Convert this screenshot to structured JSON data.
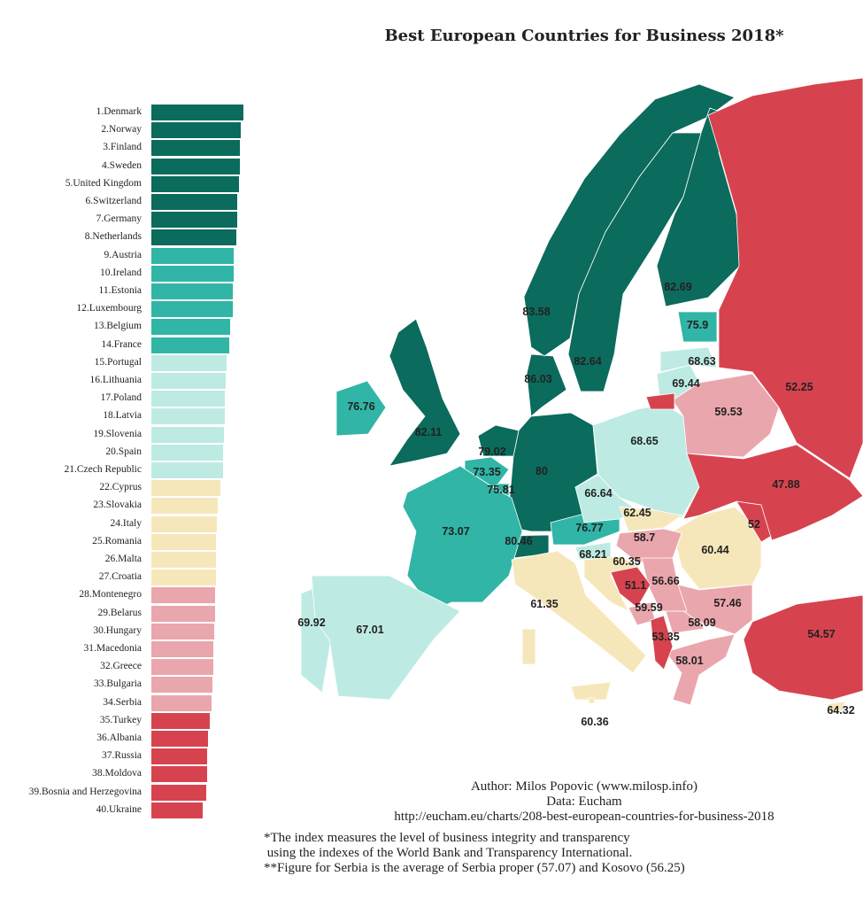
{
  "chart_data": [
    {
      "type": "bar",
      "orientation": "horizontal",
      "title": "Best European Countries for Business 2018*",
      "xlim": [
        0,
        86.03
      ],
      "categories": [
        "1.Denmark",
        "2.Norway",
        "3.Finland",
        "4.Sweden",
        "5.United Kingdom",
        "6.Switzerland",
        "7.Germany",
        "8.Netherlands",
        "9.Austria",
        "10.Ireland",
        "11.Estonia",
        "12.Luxembourg",
        "13.Belgium",
        "14.France",
        "15.Portugal",
        "16.Lithuania",
        "17.Poland",
        "18.Latvia",
        "19.Slovenia",
        "20.Spain",
        "21.Czech Republic",
        "22.Cyprus",
        "23.Slovakia",
        "24.Italy",
        "25.Romania",
        "26.Malta",
        "27.Croatia",
        "28.Montenegro",
        "29.Belarus",
        "30.Hungary",
        "31.Macedonia",
        "32.Greece",
        "33.Bulgaria",
        "34.Serbia",
        "35.Turkey",
        "36.Albania",
        "37.Russia",
        "38.Moldova",
        "39.Bosnia and Herzegovina",
        "40.Ukraine"
      ],
      "values": [
        86.03,
        83.58,
        82.69,
        82.64,
        82.11,
        80.46,
        80,
        79.02,
        76.77,
        76.76,
        75.9,
        75.81,
        73.35,
        73.07,
        69.92,
        69.44,
        68.65,
        68.63,
        68.21,
        67.01,
        66.64,
        64.32,
        62.45,
        61.35,
        60.44,
        60.36,
        60.35,
        59.59,
        59.53,
        58.7,
        58.09,
        58.01,
        57.46,
        56.66,
        54.57,
        53.35,
        52.25,
        52,
        51.1,
        47.88
      ],
      "color_classes": [
        {
          "color": "#0b6b5c",
          "ranks": [
            1,
            8
          ]
        },
        {
          "color": "#30b5a6",
          "ranks": [
            9,
            14
          ]
        },
        {
          "color": "#bdebe3",
          "ranks": [
            15,
            21
          ]
        },
        {
          "color": "#f6e7bb",
          "ranks": [
            22,
            27
          ]
        },
        {
          "color": "#eaa6ad",
          "ranks": [
            28,
            34
          ]
        },
        {
          "color": "#d6434f",
          "ranks": [
            35,
            40
          ]
        }
      ]
    },
    {
      "type": "choropleth",
      "regions": [
        {
          "country": "Denmark",
          "value": "86.03"
        },
        {
          "country": "Norway",
          "value": "83.58"
        },
        {
          "country": "Finland",
          "value": "82.69"
        },
        {
          "country": "Sweden",
          "value": "82.64"
        },
        {
          "country": "United Kingdom",
          "value": "82.11"
        },
        {
          "country": "Switzerland",
          "value": "80.46"
        },
        {
          "country": "Germany",
          "value": "80"
        },
        {
          "country": "Netherlands",
          "value": "79.02"
        },
        {
          "country": "Austria",
          "value": "76.77"
        },
        {
          "country": "Ireland",
          "value": "76.76"
        },
        {
          "country": "Estonia",
          "value": "75.9"
        },
        {
          "country": "Luxembourg",
          "value": "75.81"
        },
        {
          "country": "Belgium",
          "value": "73.35"
        },
        {
          "country": "France",
          "value": "73.07"
        },
        {
          "country": "Portugal",
          "value": "69.92"
        },
        {
          "country": "Lithuania",
          "value": "69.44"
        },
        {
          "country": "Poland",
          "value": "68.65"
        },
        {
          "country": "Latvia",
          "value": "68.63"
        },
        {
          "country": "Slovenia",
          "value": "68.21"
        },
        {
          "country": "Spain",
          "value": "67.01"
        },
        {
          "country": "Czech Republic",
          "value": "66.64"
        },
        {
          "country": "Cyprus",
          "value": "64.32"
        },
        {
          "country": "Slovakia",
          "value": "62.45"
        },
        {
          "country": "Italy",
          "value": "61.35"
        },
        {
          "country": "Romania",
          "value": "60.44"
        },
        {
          "country": "Malta",
          "value": "60.36"
        },
        {
          "country": "Croatia",
          "value": "60.35"
        },
        {
          "country": "Montenegro",
          "value": "59.59"
        },
        {
          "country": "Belarus",
          "value": "59.53"
        },
        {
          "country": "Hungary",
          "value": "58.7"
        },
        {
          "country": "Macedonia",
          "value": "58.09"
        },
        {
          "country": "Greece",
          "value": "58.01"
        },
        {
          "country": "Bulgaria",
          "value": "57.46"
        },
        {
          "country": "Serbia",
          "value": "56.66"
        },
        {
          "country": "Turkey",
          "value": "54.57"
        },
        {
          "country": "Albania",
          "value": "53.35"
        },
        {
          "country": "Russia",
          "value": "52.25"
        },
        {
          "country": "Moldova",
          "value": "52"
        },
        {
          "country": "Bosnia and Herzegovina",
          "value": "51.1"
        },
        {
          "country": "Ukraine",
          "value": "47.88"
        }
      ]
    }
  ],
  "credits": {
    "author": "Author: Milos Popovic (www.milosp.info)",
    "data": "Data: Eucham",
    "url": "http://eucham.eu/charts/208-best-european-countries-for-business-2018"
  },
  "notes": {
    "note1": "*The index measures the level of business integrity and transparency\n using the indexes of the World Bank and Transparency International.",
    "note2": "**Figure for Serbia is the average of Serbia proper (57.07) and Kosovo (56.25)"
  }
}
